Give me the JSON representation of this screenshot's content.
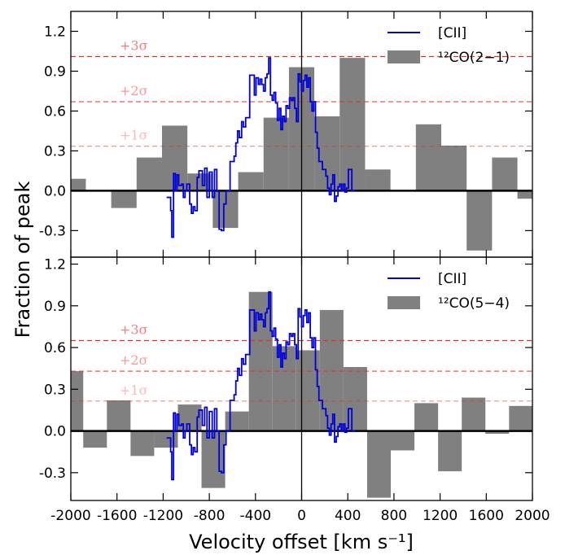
{
  "chart_data": [
    {
      "type": "line",
      "ylabel": "Fraction of peak",
      "xlabel": "Velocity offset [km s⁻¹]",
      "xlim": [
        -2000,
        2000
      ],
      "ylim": [
        -0.5,
        1.35
      ],
      "xticks": [
        -2000,
        -1600,
        -1200,
        -800,
        -400,
        0,
        400,
        800,
        1200,
        1600,
        2000
      ],
      "yticks": [
        -0.3,
        0.0,
        0.3,
        0.6,
        0.9,
        1.2
      ],
      "ytick_labels": [
        "-0.3",
        "0.0",
        "0.3",
        "0.6",
        "0.9",
        "1.2"
      ],
      "legend_position": "top-right",
      "legend": [
        "[CII]",
        "¹²CO(2−1)"
      ],
      "sigma_lines": [
        {
          "label": "+3σ",
          "value": 1.01
        },
        {
          "label": "+2σ",
          "value": 0.67
        },
        {
          "label": "+1σ",
          "value": 0.335
        }
      ],
      "series": [
        {
          "name": "¹²CO(2−1)",
          "kind": "bar",
          "color": "#808080",
          "bin_width": 220,
          "x": [
            -1980,
            -1760,
            -1540,
            -1320,
            -1100,
            -880,
            -660,
            -440,
            -220,
            0,
            220,
            440,
            660,
            880,
            1100,
            1320,
            1540,
            1760,
            1980
          ],
          "values": [
            0.09,
            0.0,
            -0.13,
            0.25,
            0.49,
            0.13,
            -0.28,
            0.14,
            0.55,
            0.93,
            0.56,
            1.0,
            0.16,
            0.0,
            0.5,
            0.34,
            -0.45,
            0.25,
            -0.06
          ]
        },
        {
          "name": "[CII]",
          "kind": "step",
          "color": "#0000dd",
          "x": [
            -1170,
            -1135,
            -1125,
            -1110,
            -1095,
            -1080,
            -1065,
            -1040,
            -1025,
            -1010,
            -995,
            -970,
            -955,
            -940,
            -925,
            -905,
            -890,
            -860,
            -840,
            -820,
            -800,
            -775,
            -755,
            -735,
            -715,
            -695,
            -675,
            -655,
            -640,
            -620,
            -605,
            -585,
            -570,
            -555,
            -540,
            -520,
            -505,
            -485,
            -465,
            -450,
            -430,
            -410,
            -395,
            -375,
            -360,
            -345,
            -330,
            -315,
            -300,
            -285,
            -270,
            -255,
            -240,
            -225,
            -210,
            -195,
            -180,
            -165,
            -150,
            -135,
            -120,
            -105,
            -90,
            -75,
            -60,
            -45,
            -30,
            -15,
            0,
            15,
            30,
            45,
            60,
            75,
            90,
            105,
            120,
            135,
            150,
            165,
            180,
            195,
            210,
            225,
            240,
            255,
            270,
            285,
            300,
            315,
            330,
            345,
            360,
            375,
            390,
            405,
            420,
            435,
            450
          ],
          "values": [
            -0.05,
            -0.15,
            -0.35,
            0.13,
            0.0,
            0.12,
            0.04,
            0.05,
            -0.05,
            0.0,
            0.05,
            -0.1,
            -0.17,
            -0.12,
            -0.15,
            0.1,
            0.15,
            0.04,
            0.17,
            -0.05,
            0.14,
            -0.05,
            0.16,
            0.0,
            -0.29,
            -0.3,
            -0.1,
            0.0,
            0.0,
            0.22,
            0.22,
            0.26,
            0.36,
            0.45,
            0.4,
            0.52,
            0.48,
            0.55,
            0.55,
            0.87,
            0.87,
            0.72,
            0.85,
            0.8,
            0.84,
            0.8,
            0.75,
            0.85,
            0.88,
            1.0,
            0.72,
            0.68,
            0.74,
            0.66,
            0.53,
            0.62,
            0.46,
            0.56,
            0.52,
            0.64,
            0.62,
            0.7,
            0.68,
            0.7,
            0.62,
            0.52,
            0.88,
            0.82,
            0.75,
            0.83,
            0.87,
            0.78,
            0.85,
            0.67,
            0.6,
            0.67,
            0.44,
            0.32,
            0.22,
            0.22,
            0.16,
            0.16,
            0.11,
            0.02,
            -0.03,
            0.05,
            0.12,
            -0.08,
            -0.04,
            0.03,
            0.05,
            0.0,
            0.05,
            -0.01,
            0.02,
            0.16,
            0.16,
            0.0,
            0.0
          ]
        }
      ]
    },
    {
      "type": "line",
      "ylabel": "Fraction of peak",
      "xlabel": "Velocity offset [km s⁻¹]",
      "xlim": [
        -2000,
        2000
      ],
      "ylim": [
        -0.5,
        1.25
      ],
      "xticks": [
        -2000,
        -1600,
        -1200,
        -800,
        -400,
        0,
        400,
        800,
        1200,
        1600,
        2000
      ],
      "xtick_labels": [
        "-2000",
        "-1600",
        "-1200",
        "-800",
        "-400",
        "0",
        "400",
        "800",
        "1200",
        "1600",
        "2000"
      ],
      "yticks": [
        -0.3,
        0.0,
        0.3,
        0.6,
        0.9,
        1.2
      ],
      "ytick_labels": [
        "-0.3",
        "0.0",
        "0.3",
        "0.6",
        "0.9",
        "1.2"
      ],
      "legend_position": "top-right",
      "legend": [
        "[CII]",
        "¹²CO(5−4)"
      ],
      "sigma_lines": [
        {
          "label": "+3σ",
          "value": 0.65
        },
        {
          "label": "+2σ",
          "value": 0.43
        },
        {
          "label": "+1σ",
          "value": 0.215
        }
      ],
      "series": [
        {
          "name": "¹²CO(5−4)",
          "kind": "bar",
          "color": "#808080",
          "bin_width": 205,
          "x": [
            -1995,
            -1790,
            -1585,
            -1380,
            -1175,
            -970,
            -765,
            -560,
            -355,
            -150,
            55,
            260,
            465,
            670,
            875,
            1080,
            1285,
            1490,
            1695,
            1900
          ],
          "values": [
            0.43,
            -0.12,
            0.22,
            -0.18,
            -0.12,
            0.19,
            -0.41,
            0.14,
            1.0,
            0.61,
            0.58,
            0.87,
            0.46,
            -0.48,
            -0.14,
            0.2,
            -0.29,
            0.24,
            -0.02,
            0.18
          ]
        },
        {
          "name": "[CII]",
          "kind": "step",
          "color": "#0000dd",
          "x": [
            -1170,
            -1135,
            -1125,
            -1110,
            -1095,
            -1080,
            -1065,
            -1040,
            -1025,
            -1010,
            -995,
            -970,
            -955,
            -940,
            -925,
            -905,
            -890,
            -860,
            -840,
            -820,
            -800,
            -775,
            -755,
            -735,
            -715,
            -695,
            -675,
            -655,
            -640,
            -620,
            -605,
            -585,
            -570,
            -555,
            -540,
            -520,
            -505,
            -485,
            -465,
            -450,
            -430,
            -410,
            -395,
            -375,
            -360,
            -345,
            -330,
            -315,
            -300,
            -285,
            -270,
            -255,
            -240,
            -225,
            -210,
            -195,
            -180,
            -165,
            -150,
            -135,
            -120,
            -105,
            -90,
            -75,
            -60,
            -45,
            -30,
            -15,
            0,
            15,
            30,
            45,
            60,
            75,
            90,
            105,
            120,
            135,
            150,
            165,
            180,
            195,
            210,
            225,
            240,
            255,
            270,
            285,
            300,
            315,
            330,
            345,
            360,
            375,
            390,
            405,
            420,
            435,
            450
          ],
          "values": [
            -0.05,
            -0.15,
            -0.35,
            0.13,
            0.0,
            0.12,
            0.04,
            0.05,
            -0.05,
            0.0,
            0.05,
            -0.1,
            -0.17,
            -0.12,
            -0.15,
            0.1,
            0.15,
            0.04,
            0.17,
            -0.05,
            0.14,
            -0.05,
            0.16,
            0.0,
            -0.29,
            -0.3,
            -0.1,
            0.0,
            0.0,
            0.22,
            0.22,
            0.26,
            0.36,
            0.45,
            0.4,
            0.52,
            0.48,
            0.55,
            0.55,
            0.87,
            0.87,
            0.72,
            0.85,
            0.8,
            0.84,
            0.8,
            0.75,
            0.85,
            0.88,
            1.0,
            0.72,
            0.68,
            0.74,
            0.66,
            0.53,
            0.62,
            0.46,
            0.56,
            0.52,
            0.64,
            0.62,
            0.7,
            0.68,
            0.7,
            0.62,
            0.52,
            0.88,
            0.82,
            0.75,
            0.83,
            0.87,
            0.78,
            0.85,
            0.67,
            0.6,
            0.67,
            0.44,
            0.32,
            0.22,
            0.22,
            0.16,
            0.16,
            0.11,
            0.02,
            -0.03,
            0.05,
            0.12,
            -0.08,
            -0.04,
            0.03,
            0.05,
            0.0,
            0.05,
            -0.01,
            0.02,
            0.16,
            0.16,
            0.0,
            0.0
          ]
        }
      ]
    }
  ],
  "figure": {
    "ylabel": "Fraction of peak",
    "xlabel": "Velocity offset [km s⁻¹]"
  }
}
